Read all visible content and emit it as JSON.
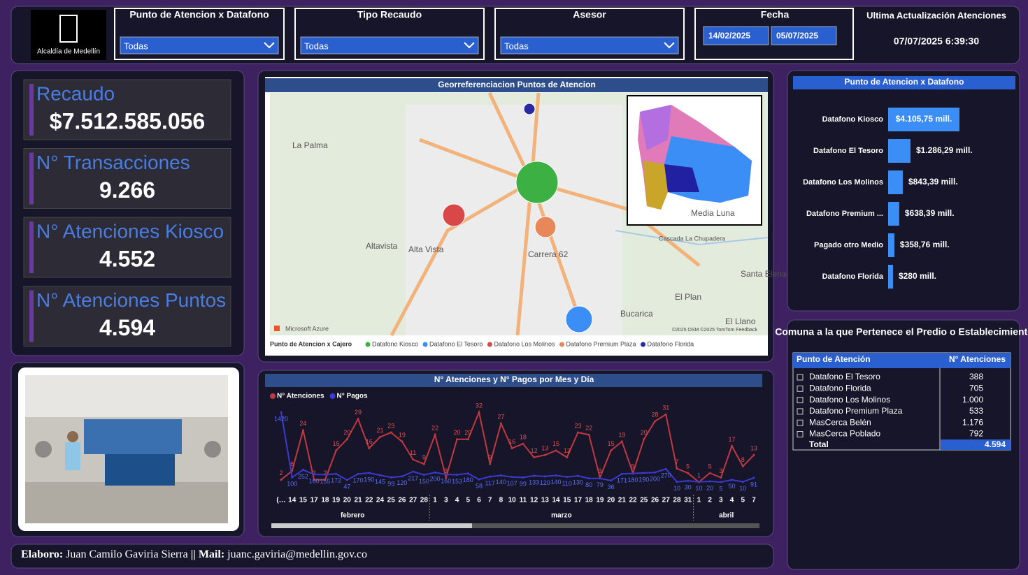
{
  "header": {
    "logo_text": "Alcaldía de Medellín",
    "filters": [
      {
        "title": "Punto de Atencion x Datafono",
        "value": "Todas"
      },
      {
        "title": "Tipo Recaudo",
        "value": "Todas"
      },
      {
        "title": "Asesor",
        "value": "Todas"
      }
    ],
    "date_filter": {
      "title": "Fecha",
      "from": "14/02/2025",
      "to": "05/07/2025"
    },
    "update": {
      "title": "Ultima Actualización Atenciones",
      "value": "07/07/2025 6:39:30"
    }
  },
  "kpis": [
    {
      "label": "Recaudo",
      "value": "$7.512.585.056"
    },
    {
      "label": "N° Transacciones",
      "value": "9.266"
    },
    {
      "label": "N° Atenciones Kiosco",
      "value": "4.552"
    },
    {
      "label": "N° Atenciones Puntos",
      "value": "4.594"
    }
  ],
  "map": {
    "title": "Georreferenciacion Puntos de Atencion",
    "legend_title": "Punto de Atencion x Cajero",
    "legend": [
      {
        "name": "Datafono Kiosco",
        "color": "#3cb043"
      },
      {
        "name": "Datafono El Tesoro",
        "color": "#3a8ef6"
      },
      {
        "name": "Datafono Los Molinos",
        "color": "#d94848"
      },
      {
        "name": "Datafono Premium Plaza",
        "color": "#e8875a"
      },
      {
        "name": "Datafono Florida",
        "color": "#2a2aa0"
      }
    ],
    "places": [
      "La Palma",
      "Altavista",
      "Alta Vista",
      "El Plan",
      "Bucarica",
      "Santa Elena",
      "El Llano",
      "Cascada La Chupadera",
      "Media Luna",
      "Carrera 62"
    ],
    "attribution": "Microsoft Azure",
    "copyright": "©2025 OSM ©2025 TomTom Feedback"
  },
  "chart_data": [
    {
      "type": "hbar",
      "title": "Punto de Atencion x Datafono",
      "categories": [
        "Datafono Kiosco",
        "Datafono El Tesoro",
        "Datafono Los Molinos",
        "Datafono Premium ...",
        "Pagado otro Medio",
        "Datafono Florida"
      ],
      "values": [
        4105.75,
        1286.29,
        843.39,
        638.39,
        358.76,
        280
      ],
      "value_labels": [
        "$4.105,75 mill.",
        "$1.286,29 mill.",
        "$843,39 mill.",
        "$638,39 mill.",
        "$358,76 mill.",
        "$280 mill."
      ],
      "color": "#3a8ef6"
    },
    {
      "type": "line",
      "title": "N° Atenciones y N° Pagos por Mes y Día",
      "categories": [
        "(…",
        "14",
        "15",
        "17",
        "18",
        "19",
        "20",
        "21",
        "22",
        "24",
        "25",
        "26",
        "27",
        "28",
        "1",
        "3",
        "4",
        "5",
        "6",
        "7",
        "8",
        "10",
        "11",
        "12",
        "13",
        "14",
        "15",
        "17",
        "18",
        "19",
        "20",
        "21",
        "22",
        "25",
        "26",
        "27",
        "28",
        "31",
        "1",
        "2",
        "3",
        "4",
        "5",
        "7"
      ],
      "month_groups": [
        {
          "name": "febrero",
          "count": 14
        },
        {
          "name": "marzo",
          "count": 24
        },
        {
          "name": "abril",
          "count": 6
        }
      ],
      "series": [
        {
          "name": "N° Atenciones",
          "color": "#c0393f",
          "values": [
            2,
            6,
            24,
            2,
            2,
            15,
            20,
            29,
            16,
            21,
            23,
            19,
            11,
            9,
            22,
            3,
            20,
            20,
            32,
            9,
            27,
            16,
            18,
            12,
            13,
            15,
            12,
            23,
            22,
            3,
            15,
            19,
            5,
            20,
            28,
            31,
            7,
            5,
            1,
            5,
            3,
            17,
            8,
            13
          ]
        },
        {
          "name": "N° Pagos",
          "color": "#3a3ad0",
          "values": [
            1420,
            100,
            252,
            160,
            155,
            172,
            47,
            170,
            190,
            145,
            99,
            120,
            217,
            150,
            200,
            160,
            153,
            180,
            58,
            117,
            140,
            107,
            99,
            133,
            120,
            140,
            110,
            130,
            80,
            79,
            36,
            171,
            180,
            190,
            200,
            270,
            10,
            30,
            10,
            20,
            5,
            50,
            10,
            91
          ]
        }
      ]
    }
  ],
  "table": {
    "title": "Comuna a la que Pertenece el Predio o Establecimiento",
    "columns": [
      "Punto de Atención",
      "N° Atenciones"
    ],
    "rows": [
      [
        "Datafono El Tesoro",
        "388"
      ],
      [
        "Datafono Florida",
        "705"
      ],
      [
        "Datafono Los Molinos",
        "1.000"
      ],
      [
        "Datafono Premium Plaza",
        "533"
      ],
      [
        "MasCerca Belén",
        "1.176"
      ],
      [
        "MasCerca Poblado",
        "792"
      ]
    ],
    "total": [
      "Total",
      "4.594"
    ]
  },
  "footer": {
    "label1": "Elaboro:",
    "name": "Juan Camilo Gaviria Sierra",
    "label2": "|| Mail:",
    "email": "juanc.gaviria@medellin.gov.co"
  }
}
